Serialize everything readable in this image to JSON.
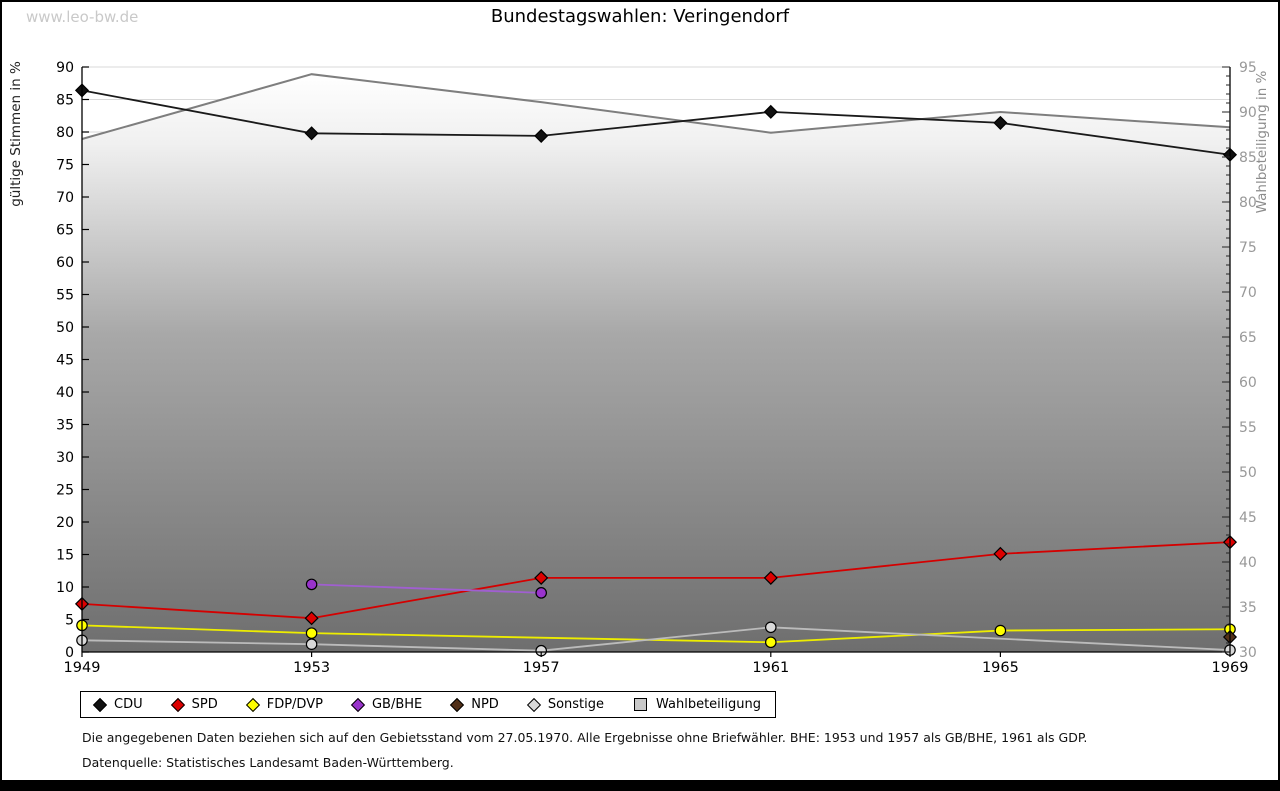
{
  "watermark": "www.leo-bw.de",
  "title": "Bundestagswahlen: Veringendorf",
  "axes": {
    "left_label": "gültige Stimmen in %",
    "right_label": "Wahlbeteiligung in %",
    "left_min": 0,
    "left_max": 90,
    "left_step": 5,
    "right_min": 30,
    "right_max": 95,
    "right_step": 5,
    "grid": true,
    "grid_color": "#d9d9d9",
    "left_tick_color": "#000000",
    "right_tick_color": "#999999"
  },
  "chart_data": {
    "type": "line",
    "title": "Bundestagswahlen: Veringendorf",
    "x": [
      1949,
      1953,
      1957,
      1961,
      1965,
      1969
    ],
    "xlabel": "",
    "ylabel_left": "gültige Stimmen in %",
    "ylabel_right": "Wahlbeteiligung in %",
    "ylim_left": [
      0,
      90
    ],
    "ylim_right": [
      30,
      95
    ],
    "legend_position": "bottom",
    "series": [
      {
        "name": "CDU",
        "axis": "left",
        "marker": "diamond",
        "color": "#111111",
        "line_color": "#1a1a1a",
        "values": [
          86.4,
          79.8,
          79.4,
          83.1,
          81.4,
          76.5
        ]
      },
      {
        "name": "SPD",
        "axis": "left",
        "marker": "diamond",
        "color": "#dd0000",
        "line_color": "#d40000",
        "values": [
          7.4,
          5.2,
          11.4,
          11.4,
          15.1,
          16.9
        ]
      },
      {
        "name": "FDP/DVP",
        "axis": "left",
        "marker": "circle",
        "color": "#ffff00",
        "line_color": "#eded00",
        "values": [
          4.1,
          2.9,
          null,
          1.5,
          3.3,
          3.5
        ]
      },
      {
        "name": "GB/BHE",
        "axis": "left",
        "marker": "circle",
        "color": "#9933cc",
        "line_color": "#a05fd0",
        "values": [
          null,
          10.4,
          9.1,
          null,
          null,
          null
        ]
      },
      {
        "name": "NPD",
        "axis": "left",
        "marker": "diamond",
        "color": "#523018",
        "line_color": "#523018",
        "values": [
          null,
          null,
          null,
          null,
          null,
          2.3
        ]
      },
      {
        "name": "Sonstige",
        "axis": "left",
        "marker": "circle",
        "color": "#d9d9d9",
        "line_color": "#bbbbbb",
        "values": [
          1.8,
          1.2,
          0.2,
          3.8,
          null,
          0.3
        ]
      },
      {
        "name": "Wahlbeteiligung",
        "axis": "right",
        "marker": "square",
        "render": "area",
        "color": "#c8c8c8",
        "line_color": "#7e7e7e",
        "area_gradient": [
          [
            "0%",
            "#ffffff"
          ],
          [
            "12%",
            "#f0f0f0"
          ],
          [
            "45%",
            "#a8a8a8"
          ],
          [
            "100%",
            "#6e6e6e"
          ]
        ],
        "values": [
          87.0,
          94.2,
          91.1,
          87.7,
          90.0,
          88.3
        ]
      }
    ]
  },
  "footnotes": {
    "line1": "Die angegebenen Daten beziehen sich auf den Gebietsstand vom 27.05.1970. Alle Ergebnisse ohne Briefwähler. BHE: 1953 und 1957 als GB/BHE, 1961 als GDP.",
    "line2": "Datenquelle: Statistisches Landesamt Baden-Württemberg."
  }
}
